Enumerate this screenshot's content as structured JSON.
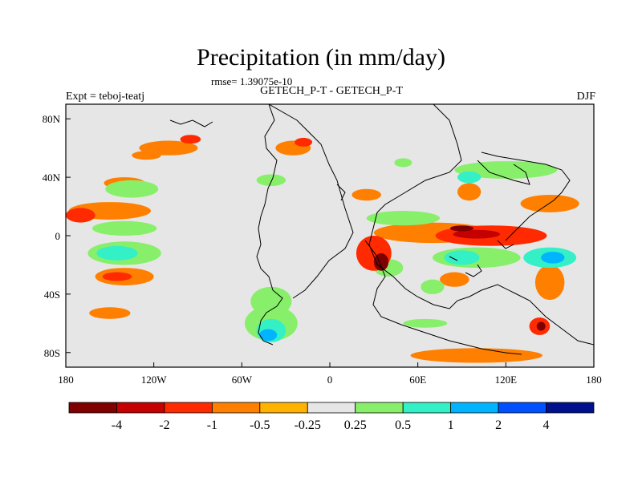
{
  "chart_data": {
    "type": "heatmap",
    "title": "Precipitation (in mm/day)",
    "subtitle": "GETECH_P-T - GETECH_P-T",
    "rmse_text": "rmse= 1.39075e-10",
    "left_label": "Expt = teboj-teatj",
    "right_label": "DJF",
    "xlim": [
      -180,
      180
    ],
    "ylim": [
      -90,
      90
    ],
    "x_ticks": [
      {
        "value": -180,
        "label": "180"
      },
      {
        "value": -120,
        "label": "120W"
      },
      {
        "value": -60,
        "label": "60W"
      },
      {
        "value": 0,
        "label": "0"
      },
      {
        "value": 60,
        "label": "60E"
      },
      {
        "value": 120,
        "label": "120E"
      },
      {
        "value": 180,
        "label": "180"
      }
    ],
    "y_ticks": [
      {
        "value": 80,
        "label": "80N"
      },
      {
        "value": 40,
        "label": "40N"
      },
      {
        "value": 0,
        "label": "0"
      },
      {
        "value": -40,
        "label": "40S"
      },
      {
        "value": -80,
        "label": "80S"
      }
    ],
    "colorbar": {
      "colors": [
        "#7f0000",
        "#c40000",
        "#ff2a00",
        "#ff7f00",
        "#ffb300",
        "#e6e6e6",
        "#87ef6a",
        "#33f0c7",
        "#00b4ff",
        "#0050ff",
        "#000f8c"
      ],
      "labels": [
        "-4",
        "-2",
        "-1",
        "-0.5",
        "-0.25",
        "0.25",
        "0.5",
        "1",
        "2",
        "4"
      ]
    },
    "background_color": "#e6e6e6",
    "anomaly_patches": [
      {
        "lon": -150,
        "lat": 17,
        "rlon": 28,
        "rlat": 6,
        "level": -0.5
      },
      {
        "lon": -170,
        "lat": 14,
        "rlon": 10,
        "rlat": 5,
        "level": -1
      },
      {
        "lon": -140,
        "lat": 36,
        "rlon": 14,
        "rlat": 4,
        "level": -0.5
      },
      {
        "lon": -110,
        "lat": 60,
        "rlon": 20,
        "rlat": 5,
        "level": -0.5
      },
      {
        "lon": -95,
        "lat": 66,
        "rlon": 7,
        "rlat": 3,
        "level": -1
      },
      {
        "lon": -125,
        "lat": 55,
        "rlon": 10,
        "rlat": 3,
        "level": -0.5
      },
      {
        "lon": -25,
        "lat": 60,
        "rlon": 12,
        "rlat": 5,
        "level": -0.5
      },
      {
        "lon": -18,
        "lat": 64,
        "rlon": 6,
        "rlat": 3,
        "level": -1
      },
      {
        "lon": 70,
        "lat": 2,
        "rlon": 40,
        "rlat": 7,
        "level": -0.5
      },
      {
        "lon": 110,
        "lat": 0,
        "rlon": 38,
        "rlat": 7,
        "level": -1
      },
      {
        "lon": 100,
        "lat": 1,
        "rlon": 16,
        "rlat": 3,
        "level": -2
      },
      {
        "lon": 90,
        "lat": 5,
        "rlon": 8,
        "rlat": 2,
        "level": -4
      },
      {
        "lon": 30,
        "lat": -12,
        "rlon": 12,
        "rlat": 12,
        "level": -1
      },
      {
        "lon": 35,
        "lat": -18,
        "rlon": 5,
        "rlat": 6,
        "level": -4
      },
      {
        "lon": -140,
        "lat": -28,
        "rlon": 20,
        "rlat": 6,
        "level": -0.5
      },
      {
        "lon": -145,
        "lat": -28,
        "rlon": 10,
        "rlat": 3,
        "level": -1
      },
      {
        "lon": 143,
        "lat": -62,
        "rlon": 7,
        "rlat": 6,
        "level": -1
      },
      {
        "lon": 144,
        "lat": -62,
        "rlon": 3,
        "rlat": 3,
        "level": -4
      },
      {
        "lon": 100,
        "lat": -82,
        "rlon": 45,
        "rlat": 5,
        "level": -0.5
      },
      {
        "lon": 150,
        "lat": 22,
        "rlon": 20,
        "rlat": 6,
        "level": -0.5
      },
      {
        "lon": 150,
        "lat": -32,
        "rlon": 10,
        "rlat": 12,
        "level": -0.5
      },
      {
        "lon": -150,
        "lat": -53,
        "rlon": 14,
        "rlat": 4,
        "level": -0.5
      },
      {
        "lon": 95,
        "lat": 30,
        "rlon": 8,
        "rlat": 6,
        "level": -0.5
      },
      {
        "lon": 25,
        "lat": 28,
        "rlon": 10,
        "rlat": 4,
        "level": -0.5
      },
      {
        "lon": 85,
        "lat": -30,
        "rlon": 10,
        "rlat": 5,
        "level": -0.5
      },
      {
        "lon": -140,
        "lat": 5,
        "rlon": 22,
        "rlat": 5,
        "level": 0.5
      },
      {
        "lon": -140,
        "lat": -12,
        "rlon": 25,
        "rlat": 8,
        "level": 0.5
      },
      {
        "lon": -145,
        "lat": -12,
        "rlon": 14,
        "rlat": 5,
        "level": 1
      },
      {
        "lon": -135,
        "lat": 32,
        "rlon": 18,
        "rlat": 6,
        "level": 0.5
      },
      {
        "lon": -40,
        "lat": -45,
        "rlon": 14,
        "rlat": 10,
        "level": 0.5
      },
      {
        "lon": -40,
        "lat": -60,
        "rlon": 18,
        "rlat": 12,
        "level": 0.5
      },
      {
        "lon": -40,
        "lat": -65,
        "rlon": 10,
        "rlat": 8,
        "level": 1
      },
      {
        "lon": -42,
        "lat": -68,
        "rlon": 6,
        "rlat": 4,
        "level": 2
      },
      {
        "lon": -40,
        "lat": 38,
        "rlon": 10,
        "rlat": 4,
        "level": 0.5
      },
      {
        "lon": 100,
        "lat": -15,
        "rlon": 30,
        "rlat": 7,
        "level": 0.5
      },
      {
        "lon": 90,
        "lat": -15,
        "rlon": 12,
        "rlat": 5,
        "level": 1
      },
      {
        "lon": 150,
        "lat": -15,
        "rlon": 18,
        "rlat": 7,
        "level": 1
      },
      {
        "lon": 152,
        "lat": -15,
        "rlon": 8,
        "rlat": 4,
        "level": 2
      },
      {
        "lon": 40,
        "lat": -22,
        "rlon": 10,
        "rlat": 6,
        "level": 0.5
      },
      {
        "lon": 50,
        "lat": 12,
        "rlon": 25,
        "rlat": 5,
        "level": 0.5
      },
      {
        "lon": 50,
        "lat": 50,
        "rlon": 6,
        "rlat": 3,
        "level": 0.5
      },
      {
        "lon": 120,
        "lat": 45,
        "rlon": 35,
        "rlat": 6,
        "level": 0.5
      },
      {
        "lon": 95,
        "lat": 40,
        "rlon": 8,
        "rlat": 4,
        "level": 1
      },
      {
        "lon": 65,
        "lat": -60,
        "rlon": 15,
        "rlat": 3,
        "level": 0.5
      },
      {
        "lon": 70,
        "lat": -35,
        "rlon": 8,
        "rlat": 5,
        "level": 0.5
      }
    ]
  }
}
